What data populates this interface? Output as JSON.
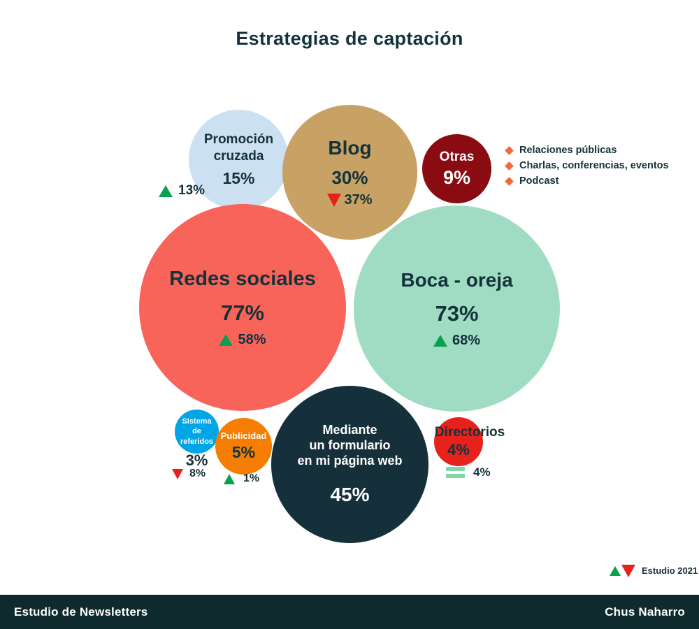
{
  "title": "Estrategias de captación",
  "chart_data": {
    "type": "bubble",
    "title": "Estrategias de captación",
    "unit": "%",
    "series": [
      {
        "label": "Redes sociales",
        "value": 77,
        "previous": 58,
        "trend": "up"
      },
      {
        "label": "Boca - oreja",
        "value": 73,
        "previous": 68,
        "trend": "up"
      },
      {
        "label": "Mediante un formulario en mi página web",
        "value": 45
      },
      {
        "label": "Blog",
        "value": 30,
        "previous": 37,
        "trend": "down"
      },
      {
        "label": "Promoción cruzada",
        "value": 15,
        "previous": 13,
        "trend": "up"
      },
      {
        "label": "Otras",
        "value": 9,
        "examples": [
          "Relaciones públicas",
          "Charlas, conferencias, eventos",
          "Podcast"
        ]
      },
      {
        "label": "Publicidad",
        "value": 5,
        "previous": 1,
        "trend": "up"
      },
      {
        "label": "Directorios",
        "value": 4,
        "previous": 4,
        "trend": "equal"
      },
      {
        "label": "Sistema de referidos",
        "value": 3,
        "previous": 8,
        "trend": "down"
      }
    ],
    "legend_note": "Estudio 2021"
  },
  "bubbles": {
    "promocion": {
      "line1": "Promoción",
      "line2": "cruzada",
      "value": "15%",
      "change": "13%"
    },
    "blog": {
      "label": "Blog",
      "value": "30%",
      "change": "37%"
    },
    "otras": {
      "label": "Otras",
      "value": "9%"
    },
    "redes": {
      "label": "Redes sociales",
      "value": "77%",
      "change": "58%"
    },
    "boca": {
      "label": "Boca - oreja",
      "value": "73%",
      "change": "68%"
    },
    "sistema": {
      "line1": "Sistema",
      "line2": "de",
      "line3": "referidos",
      "value": "3%",
      "change": "8%"
    },
    "publicidad": {
      "label": "Publicidad",
      "value": "5%",
      "change": "1%"
    },
    "formulario": {
      "line1": "Mediante",
      "line2": "un formulario",
      "line3": "en mi página web",
      "value": "45%"
    },
    "directorios": {
      "label": "Directorios",
      "value": "4%",
      "change": "4%"
    }
  },
  "otras_notes": {
    "item1": "Relaciones públicas",
    "item2": "Charlas, conferencias, eventos",
    "item3": "Podcast"
  },
  "study_legend": "Estudio 2021",
  "footer": {
    "left": "Estudio de Newsletters",
    "right": "Chus Naharro"
  },
  "colors": {
    "ink": "#14323a",
    "promocion": "#cbe1f1",
    "blog": "#c8a164",
    "otras": "#8a0c12",
    "redes": "#f9645a",
    "boca": "#a0dcc4",
    "sistema": "#00a5e6",
    "publicidad": "#f57d01",
    "formulario": "#16303b",
    "directorios": "#e7221d",
    "up_green": "#0aa04e",
    "down_red": "#e6211c",
    "equal_mint": "#82d6ab",
    "bullet_orange": "#f0693f",
    "footer_bg": "#0e2a2f"
  }
}
